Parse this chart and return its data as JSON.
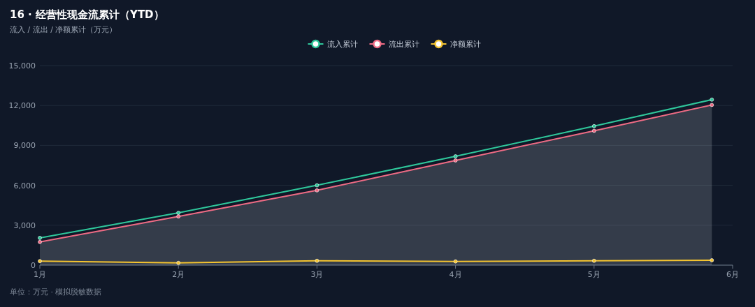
{
  "chart_data": {
    "type": "line",
    "title": "16 · 经营性现金流累计（YTD）",
    "subtitle": "流入 / 流出 / 净额累计（万元）",
    "x": [
      1,
      2,
      3,
      4,
      5,
      5.85
    ],
    "series": [
      {
        "name": "流入累计",
        "color": "#2fc79b",
        "values": [
          2050,
          3930,
          6000,
          8180,
          10450,
          12440
        ]
      },
      {
        "name": "流出累计",
        "color": "#ee6b84",
        "type": "area",
        "values": [
          1740,
          3660,
          5620,
          7870,
          10100,
          12040
        ]
      },
      {
        "name": "净额累计",
        "color": "#f4c430",
        "values": [
          300,
          170,
          330,
          280,
          330,
          370
        ]
      }
    ],
    "xlim": [
      1,
      6
    ],
    "xticks": [
      {
        "value": 1,
        "label": "1月"
      },
      {
        "value": 2,
        "label": "2月"
      },
      {
        "value": 3,
        "label": "3月"
      },
      {
        "value": 4,
        "label": "4月"
      },
      {
        "value": 5,
        "label": "5月"
      },
      {
        "value": 6,
        "label": "6月"
      }
    ],
    "ylim": [
      0,
      15000
    ],
    "yticks": [
      0,
      {
        "value": 3000,
        "label": "3,000"
      },
      {
        "value": 6000,
        "label": "6,000"
      },
      {
        "value": 9000,
        "label": "9,000"
      },
      {
        "value": 12000,
        "label": "12,000"
      },
      {
        "value": 15000,
        "label": "15,000"
      }
    ],
    "grid": "y",
    "legend": "top",
    "marker": "circle",
    "line_style": "solid",
    "annotations": [
      "单位：万元 · 模拟脱敏数据"
    ]
  }
}
